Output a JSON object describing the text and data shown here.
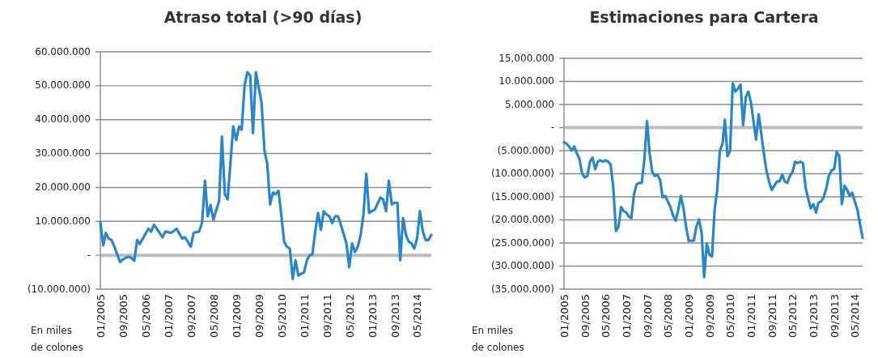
{
  "chart_data": [
    {
      "type": "line",
      "title": "Atraso total (>90 días)",
      "annotations": [
        "En miles de colones"
      ],
      "xlim": [
        "2005-01",
        "2014-10"
      ],
      "xticks": [
        {
          "value": "2005-01",
          "label": "01/2005"
        },
        {
          "value": "2005-09",
          "label": "09/2005"
        },
        {
          "value": "2006-05",
          "label": "05/2006"
        },
        {
          "value": "2007-01",
          "label": "01/2007"
        },
        {
          "value": "2007-09",
          "label": "09/2007"
        },
        {
          "value": "2008-05",
          "label": "05/2008"
        },
        {
          "value": "2009-01",
          "label": "01/2009"
        },
        {
          "value": "2009-09",
          "label": "09/2009"
        },
        {
          "value": "2010-05",
          "label": "05/2010"
        },
        {
          "value": "2011-01",
          "label": "01/2011"
        },
        {
          "value": "2011-09",
          "label": "09/2011"
        },
        {
          "value": "2012-05",
          "label": "05/2012"
        },
        {
          "value": "2013-01",
          "label": "01/2013"
        },
        {
          "value": "2013-09",
          "label": "09/2013"
        },
        {
          "value": "2014-05",
          "label": "05/2014"
        }
      ],
      "ylim": [
        -10000000,
        60000000
      ],
      "yticks": [
        {
          "value": -10000000,
          "label": "(10.000.000)"
        },
        {
          "value": 0,
          "label": "-"
        },
        {
          "value": 10000000,
          "label": "10.000.000"
        },
        {
          "value": 20000000,
          "label": "20.000.000"
        },
        {
          "value": 30000000,
          "label": "30.000.000"
        },
        {
          "value": 40000000,
          "label": "40.000.000"
        },
        {
          "value": 50000000,
          "label": "50.000.000"
        },
        {
          "value": 60000000,
          "label": "60.000.000"
        }
      ],
      "grid": "y",
      "marker": "none",
      "line_style": "solid",
      "ref_lines": [
        {
          "axis": "y",
          "value": 0,
          "color": "#bdbdbd"
        }
      ],
      "series": [
        {
          "color": "#2a86c8",
          "x": [
            "2005-01",
            "2005-02",
            "2005-03",
            "2005-04",
            "2005-05",
            "2005-06",
            "2005-08",
            "2005-09",
            "2005-11",
            "2005-12",
            "2006-01",
            "2006-02",
            "2006-03",
            "2006-06",
            "2006-07",
            "2006-08",
            "2006-11",
            "2006-12",
            "2007-02",
            "2007-04",
            "2007-06",
            "2007-07",
            "2007-09",
            "2007-10",
            "2007-12",
            "2008-01",
            "2008-02",
            "2008-03",
            "2008-04",
            "2008-05",
            "2008-07",
            "2008-08",
            "2008-09",
            "2008-10",
            "2008-12",
            "2009-01",
            "2009-02",
            "2009-03",
            "2009-04",
            "2009-05",
            "2009-06",
            "2009-07",
            "2009-08",
            "2009-10",
            "2009-11",
            "2009-12",
            "2010-01",
            "2010-02",
            "2010-03",
            "2010-04",
            "2010-05",
            "2010-06",
            "2010-07",
            "2010-08",
            "2010-09",
            "2010-10",
            "2010-11",
            "2010-12",
            "2011-01",
            "2011-02",
            "2011-03",
            "2011-04",
            "2011-05",
            "2011-06",
            "2011-07",
            "2011-08",
            "2011-09",
            "2011-10",
            "2011-11",
            "2011-12",
            "2012-01",
            "2012-02",
            "2012-04",
            "2012-05",
            "2012-06",
            "2012-07",
            "2012-08",
            "2012-09",
            "2012-10",
            "2012-11",
            "2012-12",
            "2013-01",
            "2013-02",
            "2013-04",
            "2013-05",
            "2013-06",
            "2013-07",
            "2013-08",
            "2013-09",
            "2013-10",
            "2013-11",
            "2013-12",
            "2014-01",
            "2014-02",
            "2014-03",
            "2014-04",
            "2014-05",
            "2014-06",
            "2014-07",
            "2014-08",
            "2014-09",
            "2014-10"
          ],
          "values": [
            9800000,
            2900000,
            6600000,
            4900000,
            4500000,
            2500000,
            -2000000,
            -1200000,
            -400000,
            -800000,
            -1600000,
            4500000,
            3300000,
            7800000,
            7000000,
            9000000,
            5300000,
            7000000,
            6600000,
            7800000,
            4900000,
            5300000,
            2500000,
            6600000,
            7000000,
            9800000,
            22000000,
            11500000,
            14800000,
            10500000,
            16000000,
            35000000,
            18000000,
            16500000,
            38000000,
            34000000,
            38000000,
            37000000,
            50000000,
            54000000,
            53000000,
            36000000,
            54000000,
            45000000,
            31000000,
            27000000,
            15000000,
            18500000,
            18000000,
            19000000,
            12000000,
            4000000,
            2500000,
            2000000,
            -7000000,
            -1500000,
            -6000000,
            -5500000,
            -5000000,
            -1500000,
            0,
            300000,
            7000000,
            12500000,
            7500000,
            13000000,
            12000000,
            11500000,
            9500000,
            11500000,
            11500000,
            9000000,
            3500000,
            -3500000,
            3500000,
            1000000,
            2500000,
            6000000,
            12000000,
            24000000,
            12500000,
            13000000,
            13500000,
            17000000,
            16500000,
            13000000,
            22000000,
            15000000,
            15500000,
            15500000,
            -1500000,
            11000000,
            6000000,
            4000000,
            3500000,
            2000000,
            5000000,
            13000000,
            7000000,
            4500000,
            4500000,
            6000000
          ]
        }
      ]
    },
    {
      "type": "line",
      "title": "Estimaciones para Cartera",
      "annotations": [
        "En miles de colones"
      ],
      "xlim": [
        "2005-01",
        "2014-08"
      ],
      "xticks": [
        {
          "value": "2005-01",
          "label": "01/2005"
        },
        {
          "value": "2005-09",
          "label": "09/2005"
        },
        {
          "value": "2006-05",
          "label": "05/2006"
        },
        {
          "value": "2007-01",
          "label": "01/2007"
        },
        {
          "value": "2007-09",
          "label": "09/2007"
        },
        {
          "value": "2008-05",
          "label": "05/2008"
        },
        {
          "value": "2009-01",
          "label": "01/2009"
        },
        {
          "value": "2009-09",
          "label": "09/2009"
        },
        {
          "value": "2010-05",
          "label": "05/2010"
        },
        {
          "value": "2011-01",
          "label": "01/2011"
        },
        {
          "value": "2011-09",
          "label": "09/2011"
        },
        {
          "value": "2012-05",
          "label": "05/2012"
        },
        {
          "value": "2013-01",
          "label": "01/2013"
        },
        {
          "value": "2013-09",
          "label": "09/2013"
        },
        {
          "value": "2014-05",
          "label": "05/2014"
        }
      ],
      "ylim": [
        -35000000,
        15000000
      ],
      "yticks": [
        {
          "value": -35000000,
          "label": "(35.000.000)"
        },
        {
          "value": -30000000,
          "label": "(30.000.000)"
        },
        {
          "value": -25000000,
          "label": "(25.000.000)"
        },
        {
          "value": -20000000,
          "label": "(20.000.000)"
        },
        {
          "value": -15000000,
          "label": "(15.000.000)"
        },
        {
          "value": -10000000,
          "label": "(10.000.000)"
        },
        {
          "value": -5000000,
          "label": "(5.000.000)"
        },
        {
          "value": 0,
          "label": "-"
        },
        {
          "value": 5000000,
          "label": "5.000.000"
        },
        {
          "value": 10000000,
          "label": "10.000.000"
        },
        {
          "value": 15000000,
          "label": "15.000.000"
        }
      ],
      "grid": "y",
      "marker": "none",
      "line_style": "solid",
      "ref_lines": [
        {
          "axis": "y",
          "value": 0,
          "color": "#bdbdbd"
        }
      ],
      "series": [
        {
          "color": "#2a86c8",
          "x": [
            "2005-01",
            "2005-02",
            "2005-03",
            "2005-04",
            "2005-05",
            "2005-06",
            "2005-07",
            "2005-08",
            "2005-09",
            "2005-10",
            "2005-11",
            "2005-12",
            "2006-01",
            "2006-02",
            "2006-03",
            "2006-04",
            "2006-05",
            "2006-06",
            "2006-07",
            "2006-08",
            "2006-09",
            "2006-10",
            "2006-11",
            "2006-12",
            "2007-01",
            "2007-02",
            "2007-03",
            "2007-04",
            "2007-05",
            "2007-06",
            "2007-07",
            "2007-08",
            "2007-09",
            "2007-10",
            "2007-11",
            "2007-12",
            "2008-01",
            "2008-02",
            "2008-03",
            "2008-04",
            "2008-06",
            "2008-07",
            "2008-08",
            "2008-09",
            "2008-10",
            "2008-11",
            "2008-12",
            "2009-01",
            "2009-02",
            "2009-03",
            "2009-04",
            "2009-05",
            "2009-06",
            "2009-07",
            "2009-08",
            "2009-09",
            "2009-10",
            "2009-11",
            "2009-12",
            "2010-01",
            "2010-02",
            "2010-03",
            "2010-04",
            "2010-05",
            "2010-06",
            "2010-07",
            "2010-08",
            "2010-09",
            "2010-10",
            "2010-11",
            "2010-12",
            "2011-01",
            "2011-02",
            "2011-03",
            "2011-04",
            "2011-05",
            "2011-06",
            "2011-07",
            "2011-08",
            "2011-09",
            "2011-11",
            "2011-12",
            "2012-01",
            "2012-02",
            "2012-03",
            "2012-04",
            "2012-05",
            "2012-06",
            "2012-07",
            "2012-08",
            "2012-09",
            "2012-10",
            "2012-11",
            "2012-12",
            "2013-01",
            "2013-02",
            "2013-03",
            "2013-04",
            "2013-05",
            "2013-06",
            "2013-07",
            "2013-08",
            "2013-09",
            "2013-10",
            "2013-11",
            "2013-12",
            "2014-01",
            "2014-02",
            "2014-03",
            "2014-04",
            "2014-05",
            "2014-06",
            "2014-07",
            "2014-08"
          ],
          "values": [
            -3200000,
            -3500000,
            -4100000,
            -5000000,
            -4100000,
            -5600000,
            -6800000,
            -9900000,
            -10800000,
            -10500000,
            -7400000,
            -6500000,
            -9000000,
            -7400000,
            -7100000,
            -7400000,
            -7100000,
            -7400000,
            -8000000,
            -12900000,
            -22400000,
            -21500000,
            -17200000,
            -18100000,
            -18400000,
            -19300000,
            -19600000,
            -14500000,
            -12300000,
            -12000000,
            -12000000,
            -6800000,
            1400000,
            -5600000,
            -9600000,
            -10500000,
            -10200000,
            -11400000,
            -15100000,
            -14800000,
            -17200000,
            -19000000,
            -20200000,
            -17800000,
            -14800000,
            -17500000,
            -21500000,
            -24500000,
            -24500000,
            -24500000,
            -21500000,
            -19900000,
            -22700000,
            -32400000,
            -25100000,
            -27600000,
            -27900000,
            -17800000,
            -13500000,
            -5000000,
            -3500000,
            1700000,
            -6200000,
            -5000000,
            9600000,
            7800000,
            8400000,
            9300000,
            500000,
            6600000,
            7800000,
            5400000,
            1100000,
            -2600000,
            2900000,
            -1300000,
            -5600000,
            -9300000,
            -11700000,
            -13500000,
            -11700000,
            -11700000,
            -10200000,
            -11700000,
            -12000000,
            -10500000,
            -9600000,
            -7400000,
            -7700000,
            -7400000,
            -7700000,
            -12900000,
            -15400000,
            -17500000,
            -16600000,
            -18400000,
            -16300000,
            -16000000,
            -15100000,
            -13200000,
            -10500000,
            -9300000,
            -9000000,
            -5300000,
            -6200000,
            -16600000,
            -12600000,
            -13500000,
            -14800000,
            -14100000,
            -16000000,
            -17800000,
            -20900000,
            -23900000
          ]
        }
      ]
    }
  ]
}
